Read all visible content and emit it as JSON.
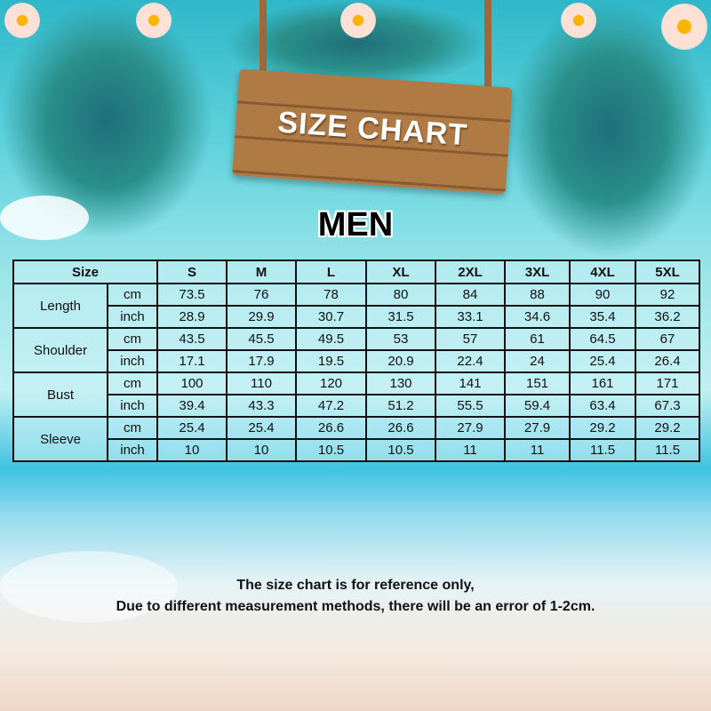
{
  "sign_title": "SIZE CHART",
  "section_title": "MEN",
  "table": {
    "size_label": "Size",
    "sizes": [
      "S",
      "M",
      "L",
      "XL",
      "2XL",
      "3XL",
      "4XL",
      "5XL"
    ],
    "measurements": [
      {
        "name": "Length",
        "rows": [
          {
            "unit": "cm",
            "values": [
              "73.5",
              "76",
              "78",
              "80",
              "84",
              "88",
              "90",
              "92"
            ]
          },
          {
            "unit": "inch",
            "values": [
              "28.9",
              "29.9",
              "30.7",
              "31.5",
              "33.1",
              "34.6",
              "35.4",
              "36.2"
            ]
          }
        ]
      },
      {
        "name": "Shoulder",
        "rows": [
          {
            "unit": "cm",
            "values": [
              "43.5",
              "45.5",
              "49.5",
              "53",
              "57",
              "61",
              "64.5",
              "67"
            ]
          },
          {
            "unit": "inch",
            "values": [
              "17.1",
              "17.9",
              "19.5",
              "20.9",
              "22.4",
              "24",
              "25.4",
              "26.4"
            ]
          }
        ]
      },
      {
        "name": "Bust",
        "rows": [
          {
            "unit": "cm",
            "values": [
              "100",
              "110",
              "120",
              "130",
              "141",
              "151",
              "161",
              "171"
            ]
          },
          {
            "unit": "inch",
            "values": [
              "39.4",
              "43.3",
              "47.2",
              "51.2",
              "55.5",
              "59.4",
              "63.4",
              "67.3"
            ]
          }
        ]
      },
      {
        "name": "Sleeve",
        "rows": [
          {
            "unit": "cm",
            "values": [
              "25.4",
              "25.4",
              "26.6",
              "26.6",
              "27.9",
              "27.9",
              "29.2",
              "29.2"
            ]
          },
          {
            "unit": "inch",
            "values": [
              "10",
              "10",
              "10.5",
              "10.5",
              "11",
              "11",
              "11.5",
              "11.5"
            ]
          }
        ]
      }
    ]
  },
  "footer": {
    "line1": "The size chart is for reference only,",
    "line2": "Due to different measurement methods, there will be an error of 1-2cm."
  }
}
